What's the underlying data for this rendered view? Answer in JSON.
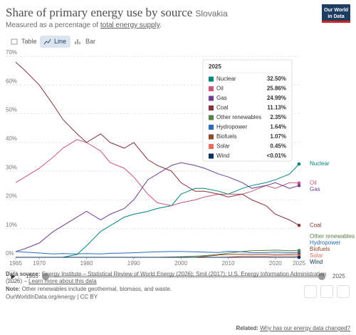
{
  "header": {
    "title": "Share of primary energy use by source",
    "entity": "Slovakia",
    "subtitle_before": "Measured as a percentage of ",
    "subtitle_link": "total energy supply",
    "subtitle_after": "."
  },
  "logo": [
    "Our World",
    "in Data"
  ],
  "tabs": [
    "Table",
    "Line",
    "Bar"
  ],
  "chart_data": {
    "type": "line",
    "x": [
      1965,
      1967,
      1970,
      1973,
      1975,
      1978,
      1980,
      1983,
      1985,
      1988,
      1990,
      1993,
      1995,
      1998,
      2000,
      2003,
      2005,
      2008,
      2010,
      2013,
      2015,
      2018,
      2020,
      2023,
      2025
    ],
    "xlim": [
      1965,
      2025
    ],
    "xticks": [
      1965,
      1970,
      1980,
      1990,
      2000,
      2010,
      2020,
      2025
    ],
    "ylim": [
      0,
      70
    ],
    "yticks": [
      {
        "value": 0,
        "label": "0%"
      },
      {
        "value": 10,
        "label": "10%"
      },
      {
        "value": 20,
        "label": "20%"
      },
      {
        "value": 30,
        "label": "30%"
      },
      {
        "value": 40,
        "label": "40%"
      },
      {
        "value": 50,
        "label": "50%"
      },
      {
        "value": 60,
        "label": "60%"
      },
      {
        "value": 70,
        "label": "70%"
      }
    ],
    "grid": true,
    "series": [
      {
        "name": "Nuclear",
        "color": "#00847e",
        "tooltip_label": "32.50%",
        "values": [
          0,
          0,
          0,
          0,
          0,
          1,
          4,
          9,
          11,
          14,
          15,
          16,
          17,
          18,
          22,
          24,
          24,
          23,
          22,
          24,
          25,
          26,
          27,
          29,
          32.5
        ]
      },
      {
        "name": "Oil",
        "color": "#c9587a",
        "tooltip_label": "25.86%",
        "values": [
          26,
          28,
          31,
          35,
          38,
          41,
          40,
          37,
          33,
          31,
          28,
          22,
          19,
          18,
          19,
          20,
          21,
          22,
          22,
          22,
          23,
          25,
          24,
          26,
          25.86
        ]
      },
      {
        "name": "Gas",
        "color": "#6d3e91",
        "tooltip_label": "24.99%",
        "values": [
          2,
          3,
          5,
          9,
          11,
          14,
          16,
          13,
          15,
          17,
          20,
          27,
          29,
          32,
          33,
          32,
          31,
          29,
          28,
          26,
          24,
          25,
          26,
          24,
          24.99
        ]
      },
      {
        "name": "Coal",
        "color": "#883039",
        "tooltip_label": "11.13%",
        "values": [
          68,
          65,
          60,
          53,
          48,
          43,
          40,
          43,
          40,
          38,
          40,
          34,
          32,
          30,
          26,
          23,
          23,
          22,
          21,
          22,
          20,
          18,
          15,
          13,
          11.13
        ]
      },
      {
        "name": "Other renewables",
        "color": "#578145",
        "tooltip_label": "2.35%",
        "values": [
          0,
          0,
          0,
          0,
          0,
          0,
          0,
          0,
          0,
          0,
          0,
          0,
          0,
          0.1,
          0.2,
          0.4,
          0.6,
          1,
          1.5,
          2,
          2.3,
          2.4,
          2.5,
          2.3,
          2.35
        ]
      },
      {
        "name": "Hydropower",
        "color": "#286bbb",
        "tooltip_label": "1.64%",
        "values": [
          2,
          1.8,
          1.5,
          1.2,
          1.3,
          1.2,
          1.3,
          1.2,
          1.4,
          1.5,
          1.6,
          1.8,
          1.9,
          2,
          2,
          1.9,
          1.8,
          1.7,
          2.1,
          1.9,
          1.6,
          1.7,
          1.8,
          1.7,
          1.64
        ]
      },
      {
        "name": "Biofuels",
        "color": "#8c4b2b",
        "tooltip_label": "1.07%",
        "values": [
          0,
          0,
          0,
          0,
          0,
          0,
          0,
          0,
          0,
          0,
          0,
          0,
          0,
          0,
          0,
          0,
          0.3,
          0.8,
          1,
          1.1,
          1,
          1.1,
          1,
          1.1,
          1.07
        ]
      },
      {
        "name": "Solar",
        "color": "#e56e5a",
        "tooltip_label": "0.45%",
        "values": [
          0,
          0,
          0,
          0,
          0,
          0,
          0,
          0,
          0,
          0,
          0,
          0,
          0,
          0,
          0,
          0,
          0,
          0,
          0.1,
          0.4,
          0.4,
          0.4,
          0.5,
          0.5,
          0.45
        ]
      },
      {
        "name": "Wind",
        "color": "#0b2f5a",
        "tooltip_label": "<0.01%",
        "values": [
          0,
          0,
          0,
          0,
          0,
          0,
          0,
          0,
          0,
          0,
          0,
          0,
          0,
          0,
          0,
          0,
          0,
          0,
          0.005,
          0.005,
          0.005,
          0.005,
          0.005,
          0.005,
          0.005
        ]
      }
    ]
  },
  "footer": {
    "source_label": "Data source:",
    "source_text": "Energy Institute – Statistical Review of World Energy (2026); Smil (2017); U.S. Energy Information Administration (2026) – ",
    "source_link": "Learn more about this data",
    "note_label": "Note:",
    "note_text": "Other renewables include geothermal, biomass, and waste.",
    "url": "OurWorldInData.org/energy | CC BY"
  },
  "related": {
    "label": "Related:",
    "link": "Why has our energy data changed?"
  }
}
